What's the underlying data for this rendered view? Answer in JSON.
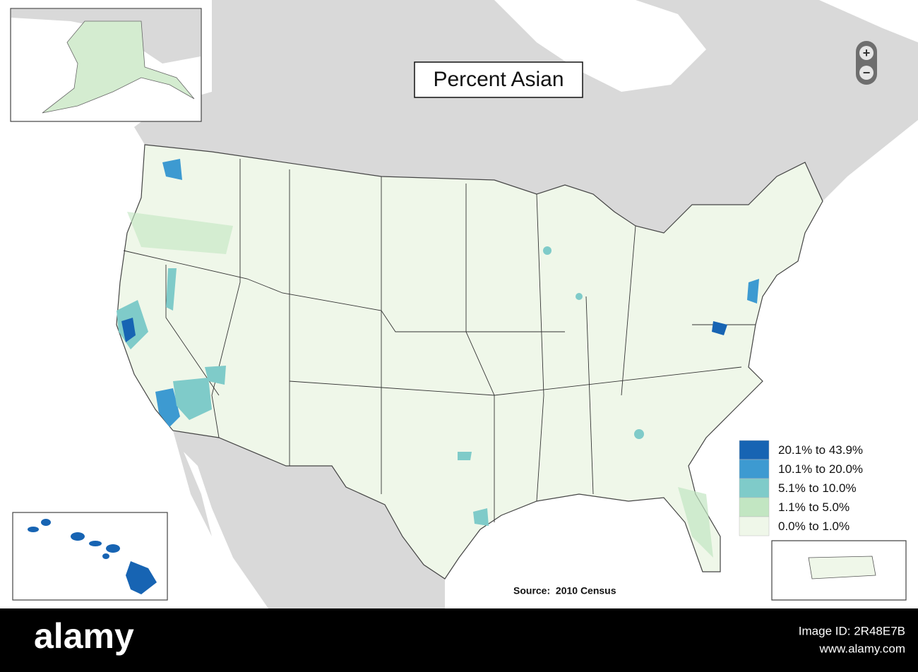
{
  "title": "Percent Asian",
  "legend": [
    {
      "label": "20.1% to 43.9%",
      "color": "#1764b3"
    },
    {
      "label": "10.1% to 20.0%",
      "color": "#3d9ad1"
    },
    {
      "label": "5.1% to 10.0%",
      "color": "#7fcbc9"
    },
    {
      "label": "1.1% to 5.0%",
      "color": "#c2e6c2"
    },
    {
      "label": "0.0% to 1.0%",
      "color": "#eff7e9"
    }
  ],
  "source": "Source:  2010 Census",
  "zoom": {
    "in": "+",
    "out": "−"
  },
  "footer": {
    "brand": "alamy",
    "image_id": "Image ID: 2R48E7B",
    "url": "www.alamy.com"
  }
}
